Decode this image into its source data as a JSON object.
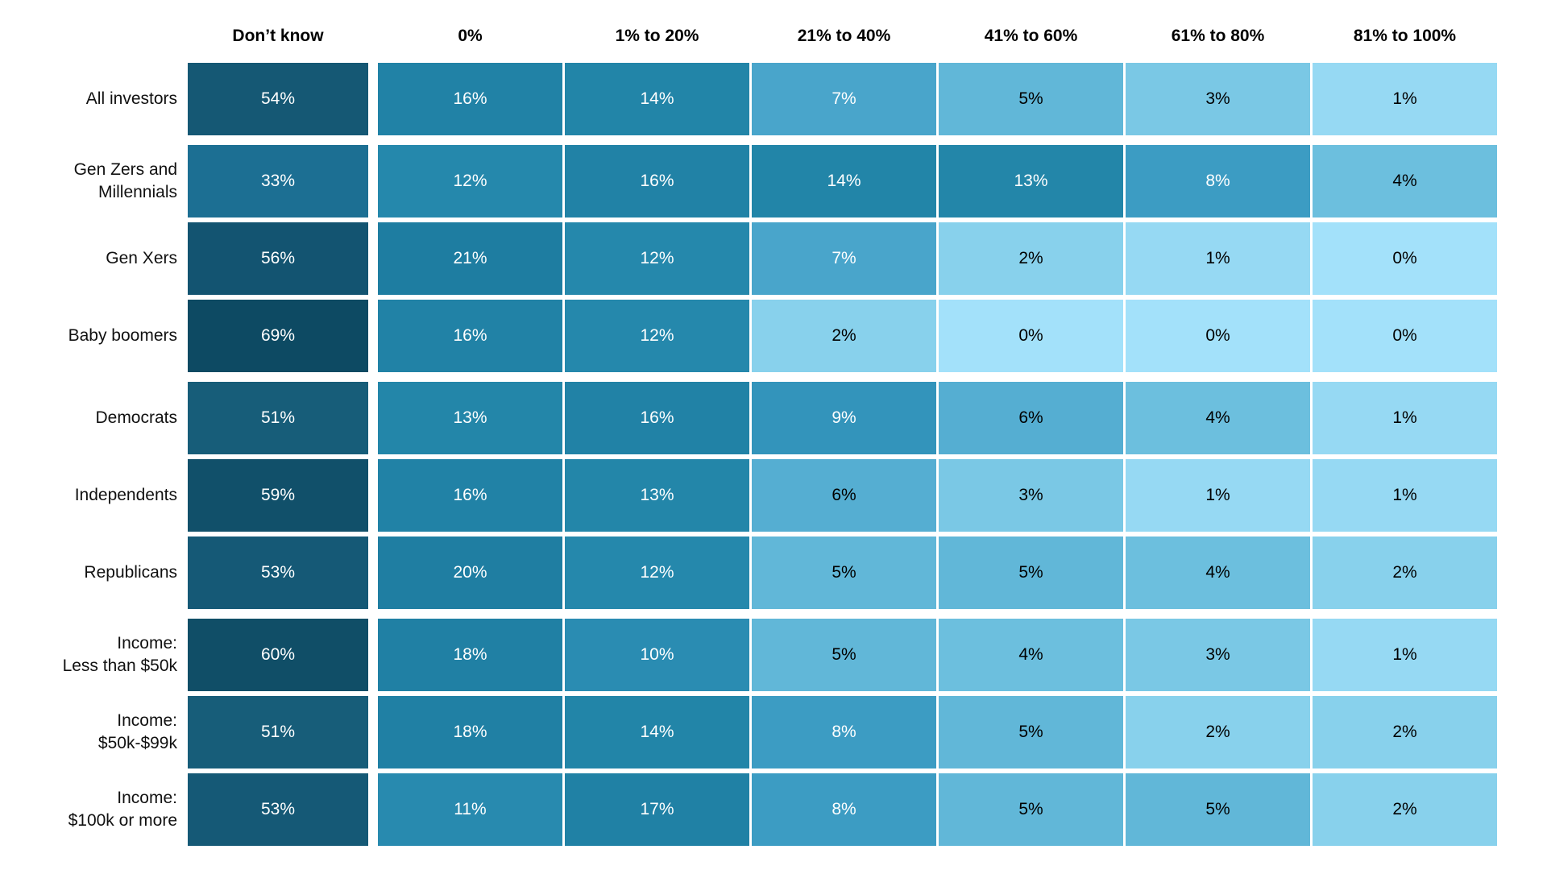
{
  "value_suffix": "%",
  "style": {
    "background": "#ffffff",
    "header_text_color": "#000000",
    "label_text_color": "#111111",
    "cell_text_light": "#ffffff",
    "cell_text_dark": "#000000",
    "white_text_min_value": 7,
    "color_scale_stops": [
      {
        "value": 0,
        "color": "#a3e1fa"
      },
      {
        "value": 2,
        "color": "#88d1ec"
      },
      {
        "value": 4,
        "color": "#6cbfde"
      },
      {
        "value": 6,
        "color": "#55aed2"
      },
      {
        "value": 8,
        "color": "#3c9cc3"
      },
      {
        "value": 10,
        "color": "#2a8cb2"
      },
      {
        "value": 13,
        "color": "#2386a9"
      },
      {
        "value": 16,
        "color": "#2182a6"
      },
      {
        "value": 21,
        "color": "#1e7da1"
      },
      {
        "value": 33,
        "color": "#1c6f93"
      },
      {
        "value": 51,
        "color": "#175d79"
      },
      {
        "value": 56,
        "color": "#135471"
      },
      {
        "value": 60,
        "color": "#104e67"
      },
      {
        "value": 69,
        "color": "#0d4a63"
      }
    ]
  },
  "chart_data": {
    "type": "heatmap",
    "value_format": "percent",
    "legend_position": "none",
    "columns": [
      "Don’t know",
      "0%",
      "1% to 20%",
      "21% to 40%",
      "41% to 60%",
      "61% to 80%",
      "81% to 100%"
    ],
    "rows": [
      {
        "label": "All investors",
        "label_lines": "All investors",
        "group": 0,
        "values": [
          54,
          16,
          14,
          7,
          5,
          3,
          1
        ]
      },
      {
        "label": "Gen Zers and Millennials",
        "label_lines": "Gen Zers and\nMillennials",
        "group": 1,
        "values": [
          33,
          12,
          16,
          14,
          13,
          8,
          4
        ]
      },
      {
        "label": "Gen Xers",
        "label_lines": "Gen Xers",
        "group": 1,
        "values": [
          56,
          21,
          12,
          7,
          2,
          1,
          0
        ]
      },
      {
        "label": "Baby boomers",
        "label_lines": "Baby boomers",
        "group": 1,
        "values": [
          69,
          16,
          12,
          2,
          0,
          0,
          0
        ]
      },
      {
        "label": "Democrats",
        "label_lines": "Democrats",
        "group": 2,
        "values": [
          51,
          13,
          16,
          9,
          6,
          4,
          1
        ]
      },
      {
        "label": "Independents",
        "label_lines": "Independents",
        "group": 2,
        "values": [
          59,
          16,
          13,
          6,
          3,
          1,
          1
        ]
      },
      {
        "label": "Republicans",
        "label_lines": "Republicans",
        "group": 2,
        "values": [
          53,
          20,
          12,
          5,
          5,
          4,
          2
        ]
      },
      {
        "label": "Income: Less than $50k",
        "label_lines": "Income:\nLess than $50k",
        "group": 3,
        "values": [
          60,
          18,
          10,
          5,
          4,
          3,
          1
        ]
      },
      {
        "label": "Income: $50k-$99k",
        "label_lines": "Income:\n$50k-$99k",
        "group": 3,
        "values": [
          51,
          18,
          14,
          8,
          5,
          2,
          2
        ]
      },
      {
        "label": "Income: $100k or more",
        "label_lines": "Income:\n$100k or more",
        "group": 3,
        "values": [
          53,
          11,
          17,
          8,
          5,
          5,
          2
        ]
      }
    ]
  }
}
